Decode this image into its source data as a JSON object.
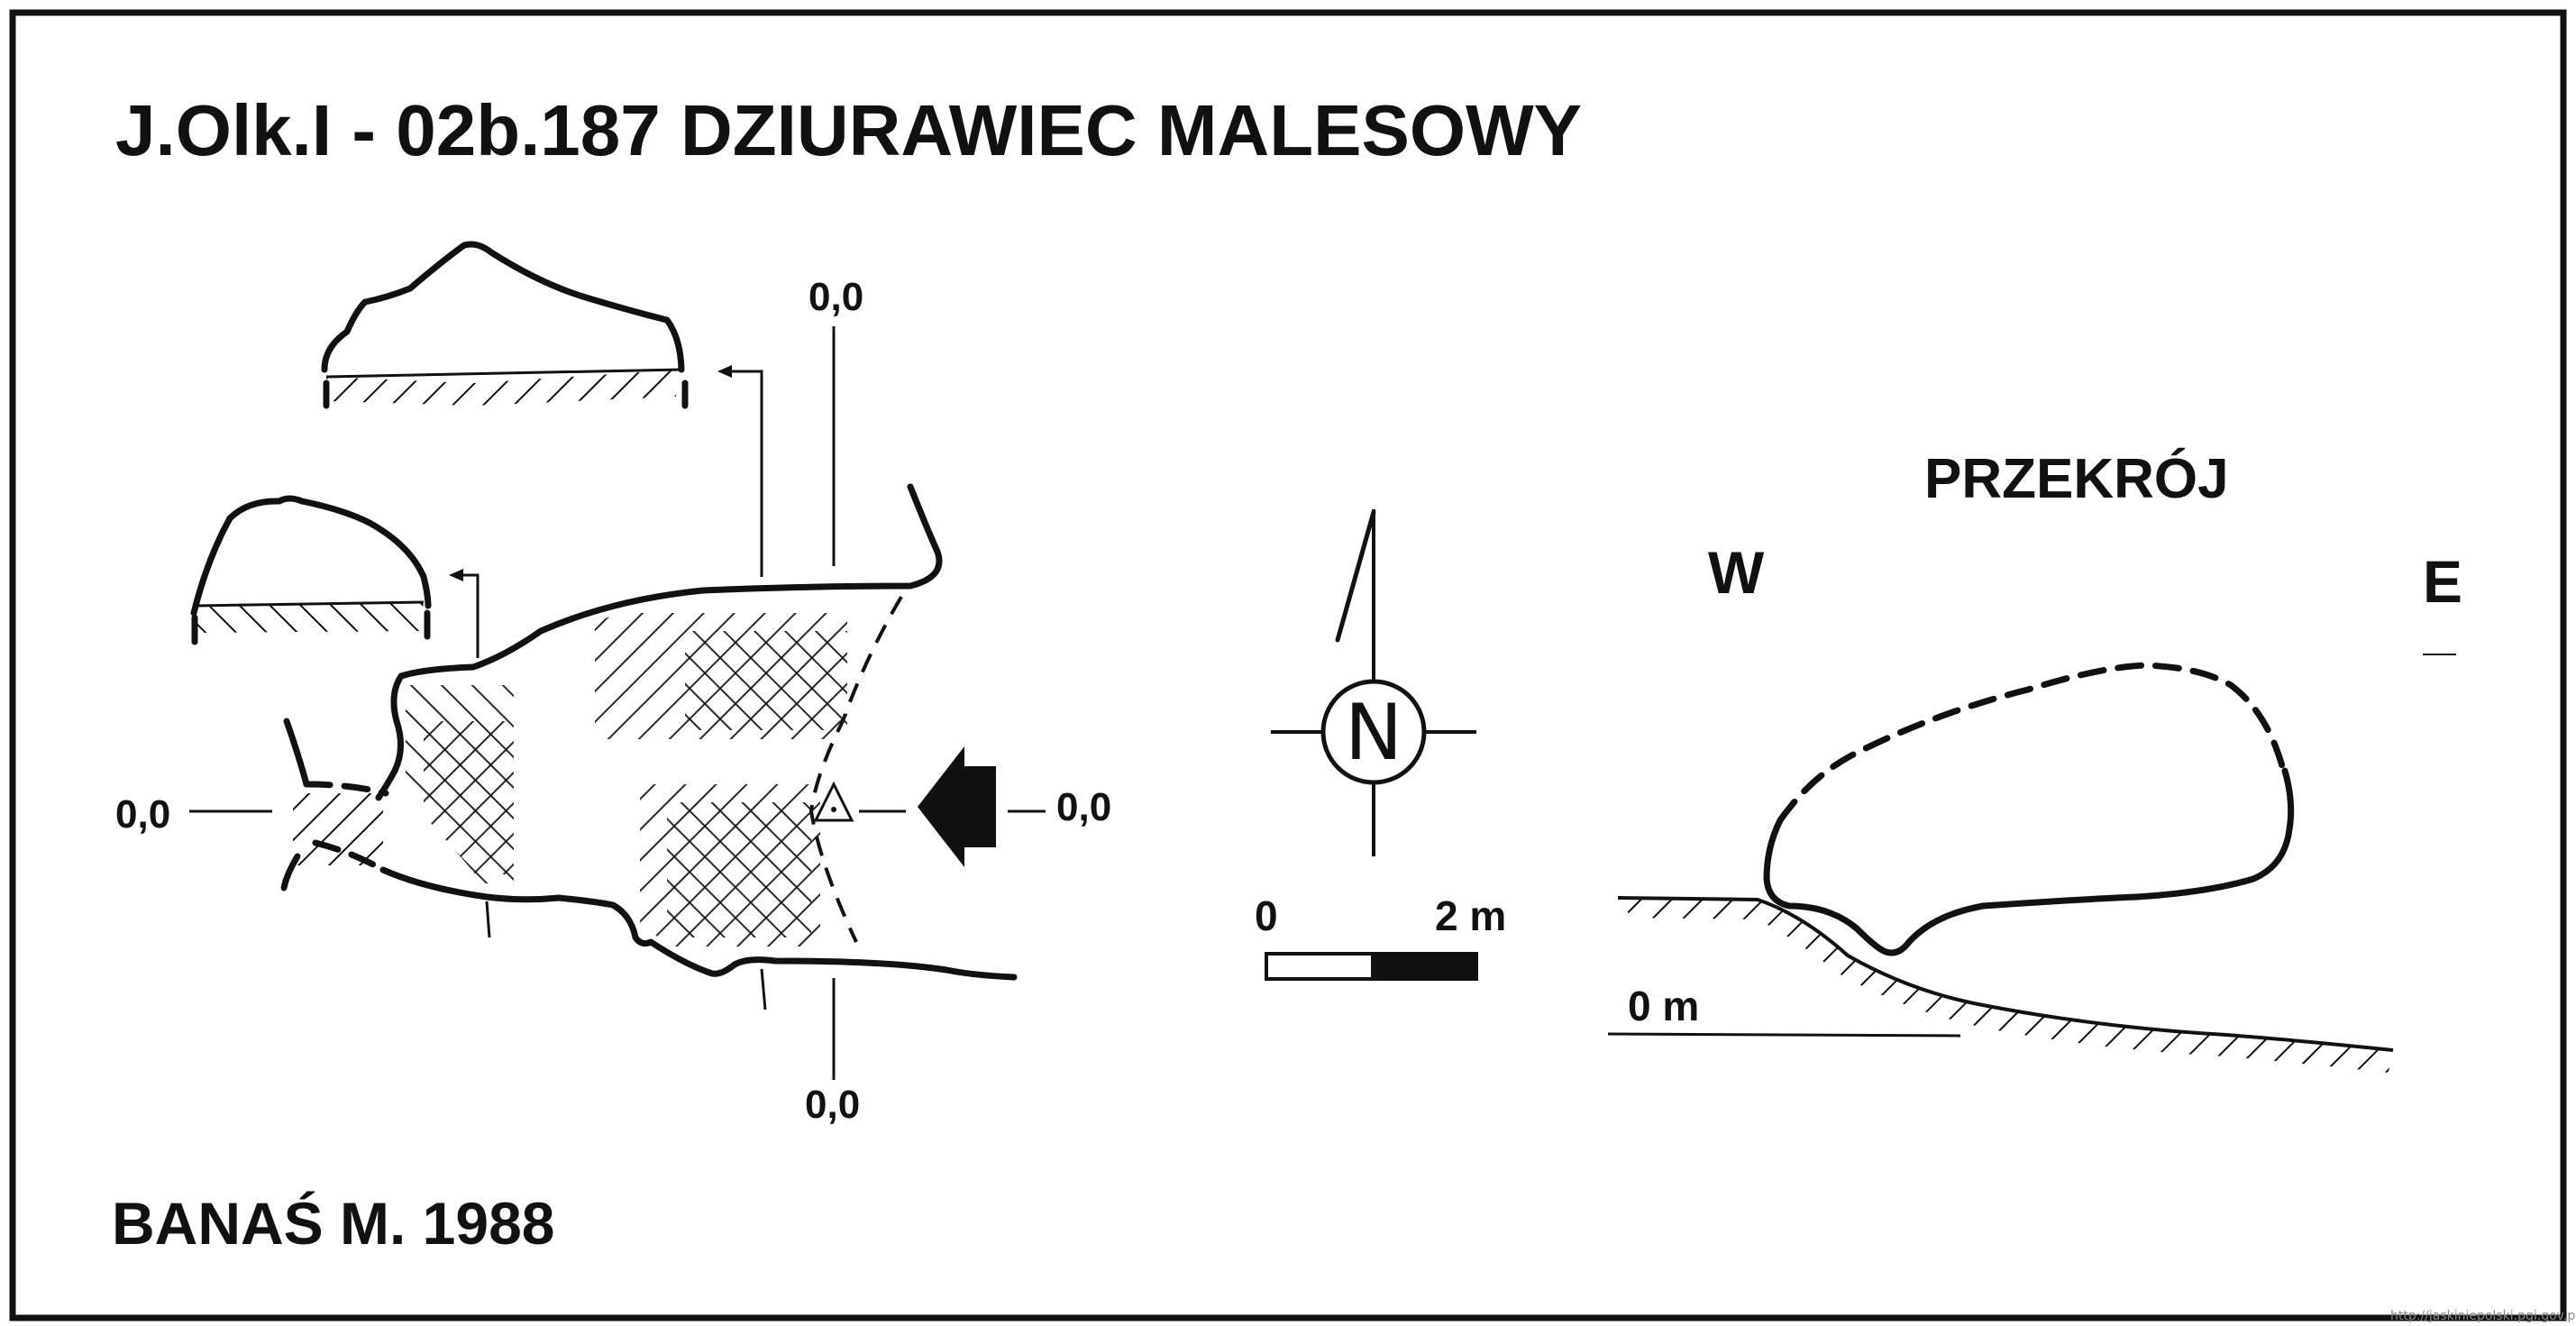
{
  "title": "J.Olk.I - 02b.187  DZIURAWIEC MALESOWY",
  "author": "BANAŚ M. 1988",
  "plan": {
    "level_labels": [
      "0,0",
      "0,0",
      "0,0",
      "0,0"
    ]
  },
  "compass": {
    "letter": "N"
  },
  "scale_bar": {
    "start_label": "0",
    "end_label": "2 m"
  },
  "section": {
    "title": "PRZEKRÓJ",
    "west_label": "W",
    "east_label": "E",
    "datum_label": "0 m"
  },
  "source": "http://jaskiniepolski.pgi.gov.pl",
  "colors": {
    "ink": "#111111",
    "background": "#ffffff"
  }
}
